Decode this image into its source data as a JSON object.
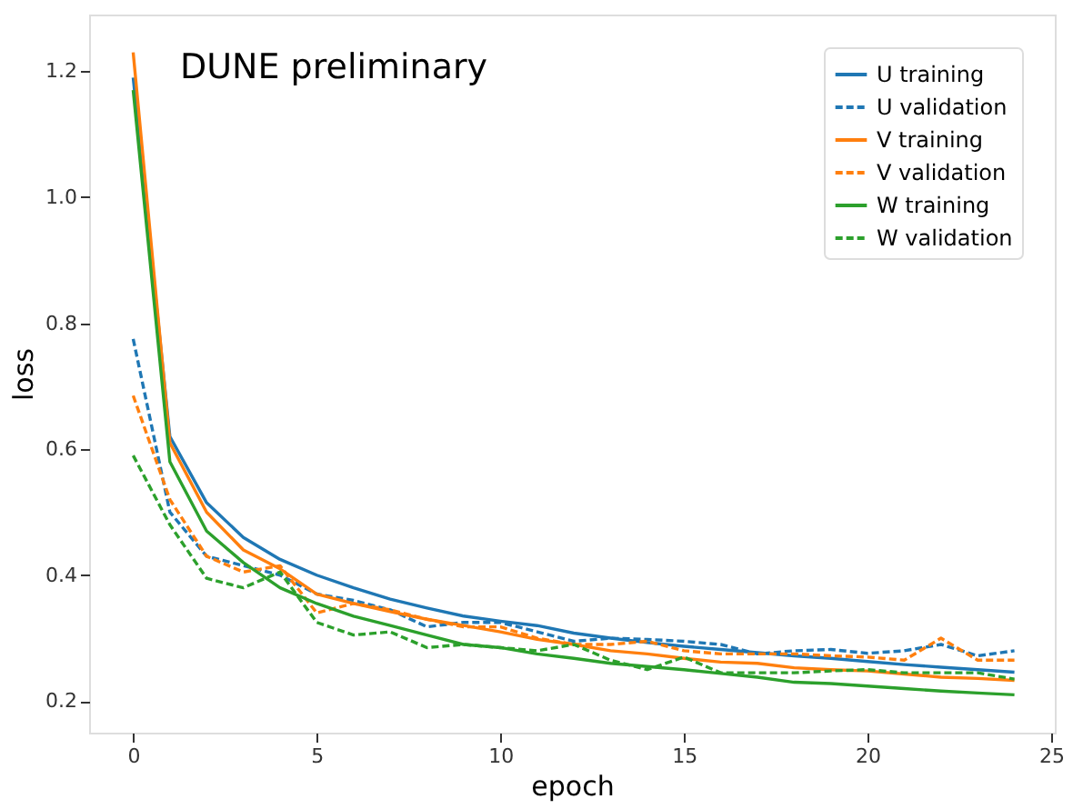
{
  "chart_data": {
    "type": "line",
    "xlabel": "epoch",
    "ylabel": "loss",
    "annotations": [
      "DUNE preliminary"
    ],
    "x": [
      0,
      1,
      2,
      3,
      4,
      5,
      6,
      7,
      8,
      9,
      10,
      11,
      12,
      13,
      14,
      15,
      16,
      17,
      18,
      19,
      20,
      21,
      22,
      23,
      24
    ],
    "xlim": [
      -1.2,
      25.1
    ],
    "xticks": [
      0,
      5,
      10,
      15,
      20,
      25
    ],
    "ylim": [
      0.15,
      1.29
    ],
    "yticks": [
      0.2,
      0.4,
      0.6,
      0.8,
      {
        "value": 1.0,
        "label": "1.0"
      },
      1.2
    ],
    "grid": false,
    "legend": "top right",
    "marker": "none",
    "series": [
      {
        "name": "U training",
        "color": "#1f77b4",
        "line_style": "solid",
        "values": [
          1.19,
          0.62,
          0.515,
          0.46,
          0.425,
          0.4,
          0.38,
          0.362,
          0.348,
          0.335,
          0.327,
          0.32,
          0.308,
          0.3,
          0.293,
          0.287,
          0.282,
          0.277,
          0.272,
          0.268,
          0.263,
          0.258,
          0.254,
          0.25,
          0.246
        ]
      },
      {
        "name": "U validation",
        "color": "#1f77b4",
        "line_style": "dashed",
        "values": [
          0.775,
          0.5,
          0.43,
          0.415,
          0.4,
          0.37,
          0.36,
          0.345,
          0.318,
          0.325,
          0.325,
          0.31,
          0.295,
          0.3,
          0.298,
          0.295,
          0.29,
          0.275,
          0.28,
          0.282,
          0.276,
          0.28,
          0.29,
          0.272,
          0.28
        ]
      },
      {
        "name": "V training",
        "color": "#ff7f0e",
        "line_style": "solid",
        "values": [
          1.23,
          0.61,
          0.5,
          0.44,
          0.41,
          0.37,
          0.355,
          0.342,
          0.33,
          0.32,
          0.31,
          0.298,
          0.29,
          0.28,
          0.275,
          0.268,
          0.262,
          0.26,
          0.253,
          0.25,
          0.248,
          0.243,
          0.238,
          0.236,
          0.233
        ]
      },
      {
        "name": "V validation",
        "color": "#ff7f0e",
        "line_style": "dashed",
        "values": [
          0.685,
          0.52,
          0.43,
          0.405,
          0.415,
          0.34,
          0.355,
          0.345,
          0.33,
          0.318,
          0.318,
          0.3,
          0.29,
          0.29,
          0.295,
          0.28,
          0.275,
          0.275,
          0.275,
          0.272,
          0.27,
          0.265,
          0.3,
          0.265,
          0.265
        ]
      },
      {
        "name": "W training",
        "color": "#2ca02c",
        "line_style": "solid",
        "values": [
          1.17,
          0.58,
          0.47,
          0.42,
          0.38,
          0.355,
          0.335,
          0.32,
          0.305,
          0.29,
          0.285,
          0.275,
          0.268,
          0.26,
          0.255,
          0.25,
          0.244,
          0.238,
          0.23,
          0.228,
          0.224,
          0.22,
          0.216,
          0.213,
          0.21
        ]
      },
      {
        "name": "W validation",
        "color": "#2ca02c",
        "line_style": "dashed",
        "values": [
          0.59,
          0.48,
          0.395,
          0.38,
          0.405,
          0.325,
          0.305,
          0.31,
          0.285,
          0.29,
          0.285,
          0.28,
          0.29,
          0.265,
          0.25,
          0.27,
          0.245,
          0.245,
          0.245,
          0.248,
          0.25,
          0.245,
          0.245,
          0.245,
          0.235
        ]
      }
    ]
  }
}
